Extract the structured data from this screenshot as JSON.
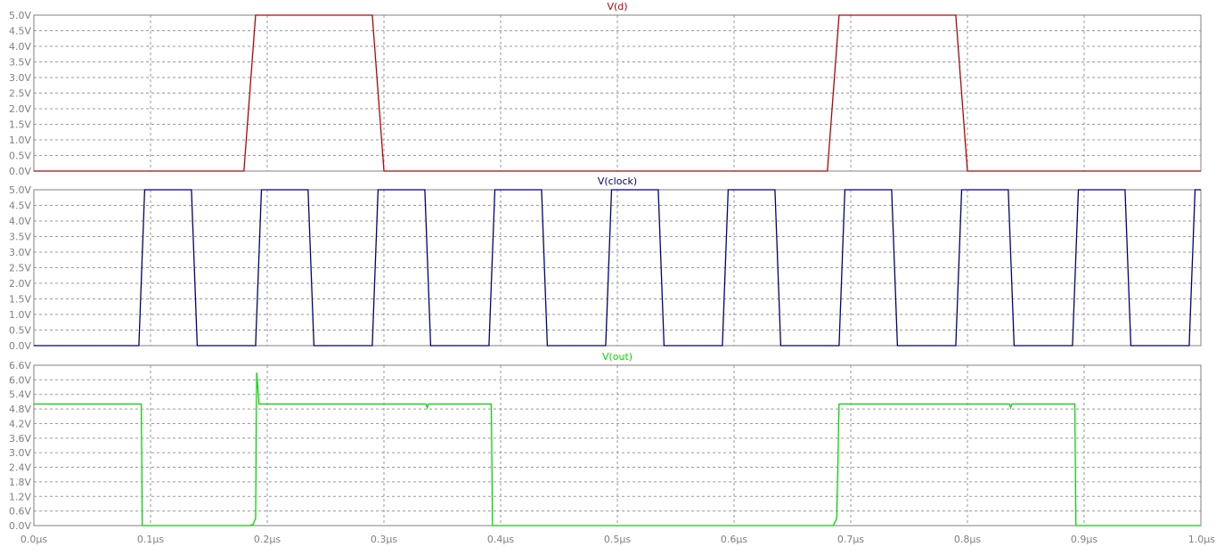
{
  "chart_data": [
    {
      "type": "line",
      "title": "V(d)",
      "color": "#c00000",
      "ylim": [
        0,
        5.0
      ],
      "yticks": [
        0,
        0.5,
        1.0,
        1.5,
        2.0,
        2.5,
        3.0,
        3.5,
        4.0,
        4.5,
        5.0
      ],
      "ytick_labels": [
        "0.0V",
        "0.5V",
        "1.0V",
        "1.5V",
        "2.0V",
        "2.5V",
        "3.0V",
        "3.5V",
        "4.0V",
        "4.5V",
        "5.0V"
      ],
      "grid": true,
      "series": [
        {
          "x_us": [
            0,
            0.18,
            0.19,
            0.29,
            0.3,
            0.68,
            0.69,
            0.79,
            0.8,
            1.0
          ],
          "y_v": [
            0,
            0,
            5,
            5,
            0,
            0,
            5,
            5,
            0,
            0
          ]
        }
      ]
    },
    {
      "type": "line",
      "title": "V(clock)",
      "color": "#00007f",
      "ylim": [
        0,
        5.0
      ],
      "yticks": [
        0,
        0.5,
        1.0,
        1.5,
        2.0,
        2.5,
        3.0,
        3.5,
        4.0,
        4.5,
        5.0
      ],
      "ytick_labels": [
        "0.0V",
        "0.5V",
        "1.0V",
        "1.5V",
        "2.0V",
        "2.5V",
        "3.0V",
        "3.5V",
        "4.0V",
        "4.5V",
        "5.0V"
      ],
      "grid": true,
      "series": [
        {
          "x_us": [
            0,
            0.09,
            0.095,
            0.135,
            0.14,
            0.19,
            0.195,
            0.235,
            0.24,
            0.29,
            0.295,
            0.335,
            0.34,
            0.39,
            0.395,
            0.435,
            0.44,
            0.49,
            0.495,
            0.535,
            0.54,
            0.59,
            0.595,
            0.635,
            0.64,
            0.69,
            0.695,
            0.735,
            0.74,
            0.79,
            0.795,
            0.835,
            0.84,
            0.89,
            0.895,
            0.935,
            0.94,
            0.99,
            0.995,
            1.0
          ],
          "y_v": [
            0,
            0,
            5,
            5,
            0,
            0,
            5,
            5,
            0,
            0,
            5,
            5,
            0,
            0,
            5,
            5,
            0,
            0,
            5,
            5,
            0,
            0,
            5,
            5,
            0,
            0,
            5,
            5,
            0,
            0,
            5,
            5,
            0,
            0,
            5,
            5,
            0,
            0,
            5,
            5
          ]
        }
      ]
    },
    {
      "type": "line",
      "title": "V(out)",
      "color": "#00e000",
      "ylim": [
        0,
        6.6
      ],
      "yticks": [
        0,
        0.6,
        1.2,
        1.8,
        2.4,
        3.0,
        3.6,
        4.2,
        4.8,
        5.4,
        6.0,
        6.6
      ],
      "ytick_labels": [
        "0.0V",
        "0.6V",
        "1.2V",
        "1.8V",
        "2.4V",
        "3.0V",
        "3.6V",
        "4.2V",
        "4.8V",
        "5.4V",
        "6.0V",
        "6.6V"
      ],
      "grid": true,
      "series": [
        {
          "x_us": [
            0,
            0.092,
            0.093,
            0.185,
            0.188,
            0.19,
            0.191,
            0.193,
            0.195,
            0.336,
            0.337,
            0.338,
            0.339,
            0.392,
            0.393,
            0.685,
            0.686,
            0.688,
            0.69,
            0.836,
            0.837,
            0.838,
            0.839,
            0.892,
            0.893,
            1.0
          ],
          "y_v": [
            5.0,
            5.0,
            0,
            0,
            0.05,
            0.3,
            6.3,
            5.0,
            5.0,
            5.0,
            4.85,
            5.0,
            5.0,
            5.0,
            0,
            0,
            0.1,
            0.3,
            5.0,
            5.0,
            4.85,
            5.0,
            5.0,
            5.0,
            0,
            0
          ]
        }
      ]
    }
  ],
  "x_axis": {
    "xlim": [
      0,
      1.0
    ],
    "ticks": [
      0,
      0.1,
      0.2,
      0.3,
      0.4,
      0.5,
      0.6,
      0.7,
      0.8,
      0.9,
      1.0
    ],
    "tick_labels": [
      "0.0µs",
      "0.1µs",
      "0.2µs",
      "0.3µs",
      "0.4µs",
      "0.5µs",
      "0.6µs",
      "0.7µs",
      "0.8µs",
      "0.9µs",
      "1.0µs"
    ]
  },
  "colors": {
    "frame": "#808080",
    "grid": "#9a9a9a",
    "tick_text": "#808080",
    "background": "#ffffff"
  }
}
